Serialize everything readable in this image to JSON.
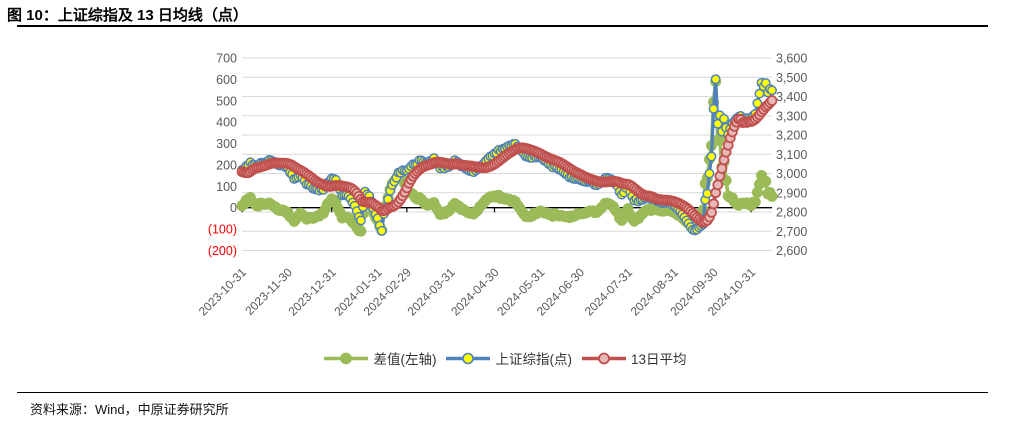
{
  "header": {
    "title": "图 10：上证综指及 13 日均线（点）"
  },
  "footer": {
    "source": "资料来源：Wind，中原证券研究所"
  },
  "colors": {
    "grid": "#D9D9D9",
    "axis_text": "#595959",
    "negative_tick": "#FF0000",
    "zero_axis": "#000000",
    "series_diff": "#9BBB59",
    "series_index_line": "#4F81BD",
    "series_index_marker": "#FFFF00",
    "series_ma_line": "#C0504D",
    "series_ma_marker": "#E6B9B8"
  },
  "chart_data": {
    "type": "line",
    "title": "图 10：上证综指及 13 日均线（点）",
    "dual_axis": true,
    "grid": true,
    "legend_position": "bottom",
    "n_points": 255,
    "left_axis": {
      "label": "差值(左轴)",
      "min": -200,
      "max": 700,
      "tick_values": [
        700,
        600,
        500,
        400,
        300,
        200,
        100,
        0,
        -100,
        -200
      ],
      "tick_labels": [
        "700",
        "600",
        "500",
        "400",
        "300",
        "200",
        "100",
        "0",
        "(100)",
        "(200)"
      ]
    },
    "right_axis": {
      "label": "上证综指(点)",
      "min": 2600,
      "max": 3600,
      "tick_values": [
        3600,
        3500,
        3400,
        3300,
        3200,
        3100,
        3000,
        2900,
        2800,
        2700,
        2600
      ],
      "tick_labels": [
        "3,600",
        "3,500",
        "3,400",
        "3,300",
        "3,200",
        "3,100",
        "3,000",
        "2,900",
        "2,800",
        "2,700",
        "2,600"
      ]
    },
    "x_ticks": [
      {
        "label": "2023-10-31",
        "i": 0
      },
      {
        "label": "2023-11-30",
        "i": 22
      },
      {
        "label": "2023-12-31",
        "i": 43
      },
      {
        "label": "2024-01-31",
        "i": 65
      },
      {
        "label": "2024-02-29",
        "i": 79
      },
      {
        "label": "2024-03-31",
        "i": 100
      },
      {
        "label": "2024-04-30",
        "i": 121
      },
      {
        "label": "2024-05-31",
        "i": 143
      },
      {
        "label": "2024-06-30",
        "i": 162
      },
      {
        "label": "2024-07-31",
        "i": 185
      },
      {
        "label": "2024-08-31",
        "i": 207
      },
      {
        "label": "2024-09-30",
        "i": 226
      },
      {
        "label": "2024-10-31",
        "i": 244
      }
    ],
    "series": [
      {
        "name": "差值(左轴)",
        "axis": "left",
        "type": "derived_diff",
        "color": "#9BBB59",
        "marker_fill": "#9BBB59",
        "marker_stroke": "#9BBB59"
      },
      {
        "name": "上证综指(点)",
        "axis": "right",
        "type": "close",
        "color": "#4F81BD",
        "marker_fill": "#FFFF00",
        "marker_stroke": "#4F81BD"
      },
      {
        "name": "13日平均",
        "axis": "right",
        "type": "moving_average",
        "window": 13,
        "color": "#C0504D",
        "marker_fill": "#E6B9B8",
        "marker_stroke": "#C0504D"
      }
    ],
    "close_anchors": [
      [
        0,
        3019
      ],
      [
        3,
        3045
      ],
      [
        4,
        3058
      ],
      [
        7,
        3039
      ],
      [
        10,
        3056
      ],
      [
        14,
        3068
      ],
      [
        18,
        3041
      ],
      [
        22,
        3030
      ],
      [
        25,
        2972
      ],
      [
        28,
        2991
      ],
      [
        31,
        2943
      ],
      [
        35,
        2918
      ],
      [
        39,
        2915
      ],
      [
        43,
        2975
      ],
      [
        45,
        2967
      ],
      [
        48,
        2887
      ],
      [
        51,
        2882
      ],
      [
        54,
        2833
      ],
      [
        57,
        2756
      ],
      [
        59,
        2906
      ],
      [
        61,
        2883
      ],
      [
        64,
        2789
      ],
      [
        66,
        2730
      ],
      [
        67,
        2702
      ],
      [
        68,
        2790
      ],
      [
        70,
        2866
      ],
      [
        71,
        2911
      ],
      [
        75,
        3005
      ],
      [
        79,
        3015
      ],
      [
        82,
        3048
      ],
      [
        86,
        3068
      ],
      [
        89,
        3055
      ],
      [
        92,
        3080
      ],
      [
        95,
        3026
      ],
      [
        100,
        3041
      ],
      [
        102,
        3069
      ],
      [
        107,
        3027
      ],
      [
        111,
        3007
      ],
      [
        115,
        3044
      ],
      [
        119,
        3089
      ],
      [
        121,
        3104
      ],
      [
        125,
        3128
      ],
      [
        131,
        3154
      ],
      [
        136,
        3089
      ],
      [
        143,
        3087
      ],
      [
        147,
        3049
      ],
      [
        151,
        3029
      ],
      [
        155,
        2998
      ],
      [
        159,
        2972
      ],
      [
        162,
        2967
      ],
      [
        166,
        2957
      ],
      [
        170,
        2939
      ],
      [
        174,
        2976
      ],
      [
        178,
        2964
      ],
      [
        182,
        2890
      ],
      [
        185,
        2939
      ],
      [
        188,
        2860
      ],
      [
        191,
        2862
      ],
      [
        195,
        2877
      ],
      [
        199,
        2856
      ],
      [
        203,
        2848
      ],
      [
        207,
        2842
      ],
      [
        211,
        2788
      ],
      [
        215,
        2722
      ],
      [
        217,
        2704
      ],
      [
        219,
        2720
      ],
      [
        221,
        2736
      ],
      [
        222,
        2863
      ],
      [
        223,
        2896
      ],
      [
        224,
        3000
      ],
      [
        225,
        3088
      ],
      [
        226,
        3336
      ],
      [
        227,
        3490
      ],
      [
        228,
        3258
      ],
      [
        229,
        3302
      ],
      [
        230,
        3218
      ],
      [
        231,
        3284
      ],
      [
        233,
        3202
      ],
      [
        235,
        3262
      ],
      [
        237,
        3286
      ],
      [
        239,
        3299
      ],
      [
        241,
        3286
      ],
      [
        244,
        3280
      ],
      [
        246,
        3310
      ],
      [
        249,
        3471
      ],
      [
        250,
        3452
      ],
      [
        251,
        3470
      ],
      [
        252,
        3421
      ],
      [
        253,
        3439
      ],
      [
        254,
        3432
      ]
    ],
    "ma_seed_closes": [
      3073,
      3058,
      3043,
      2983,
      2939,
      2962,
      2972,
      3017,
      3018,
      3021,
      3005,
      3014
    ]
  }
}
